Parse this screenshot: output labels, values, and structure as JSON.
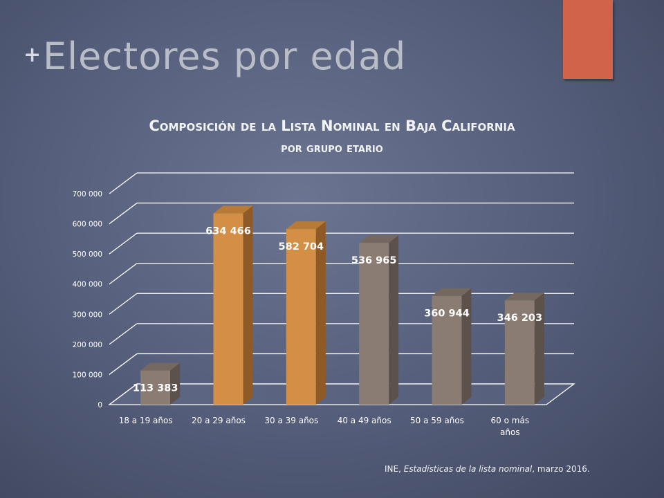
{
  "slide": {
    "title": "Electores por edad"
  },
  "colors": {
    "accent": "#d06349",
    "bar_orange": "#d28f45",
    "bar_gray": "#8a7c72"
  },
  "source": {
    "prefix": "INE, ",
    "italic": "Estadísticas de la lista nominal",
    "suffix": ", marzo 2016."
  },
  "chart_data": {
    "type": "bar",
    "title_line1": "Composición de la Lista Nominal en Baja California",
    "title_line2": "por grupo etario",
    "categories": [
      "18 a 19 años",
      "20 a 29 años",
      "30 a 39 años",
      "40 a 49 años",
      "50 a 59 años",
      "60 o más años"
    ],
    "category_lines": [
      [
        "18 a 19 años"
      ],
      [
        "20 a 29 años"
      ],
      [
        "30 a 39 años"
      ],
      [
        "40 a 49 años"
      ],
      [
        "50 a 59 años"
      ],
      [
        "60 o más",
        "años"
      ]
    ],
    "values": [
      113383,
      634466,
      582704,
      536965,
      360944,
      346203
    ],
    "value_labels": [
      "113 383",
      "634 466",
      "582 704",
      "536 965",
      "360 944",
      "346 203"
    ],
    "bar_color_keys": [
      "gray",
      "orange",
      "orange",
      "gray",
      "gray",
      "gray"
    ],
    "ylim": [
      0,
      700000
    ],
    "yticks": [
      0,
      100000,
      200000,
      300000,
      400000,
      500000,
      600000,
      700000
    ],
    "ytick_labels": [
      "0",
      "100 000",
      "200 000",
      "300 000",
      "400 000",
      "500 000",
      "600 000",
      "700 000"
    ],
    "xlabel": "",
    "ylabel": "",
    "grid": true,
    "legend": "none"
  }
}
